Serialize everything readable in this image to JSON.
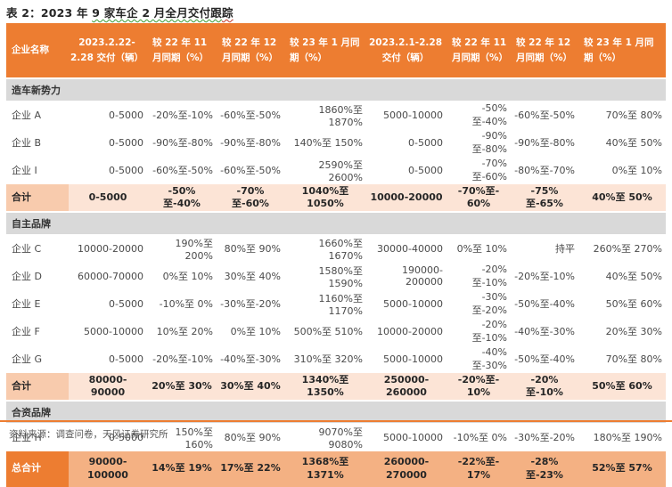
{
  "title": {
    "prefix": "表 2：2023 年 ",
    "marked_green": "9 家车企 2 月全月交付跟",
    "marked_red": "踪"
  },
  "colors": {
    "header_orange": "#ED7D31",
    "grand_total_row": "#F4B183",
    "subtotal_row": "#FCE4D6",
    "subtotal_label_cell": "#F8CBAD",
    "section_row_gray": "#D9D9D9",
    "divider_orange": "#ED7D31"
  },
  "table": {
    "headers": [
      "企业名称",
      "2023.2.22-2.28 交付（辆）",
      "较 22 年 11 月同期（%）",
      "较 22 年 12 月同期（%）",
      "较 23 年 1 月同期（%）",
      "2023.2.1-2.28 交付（辆）",
      "较 22 年 11 月同期（%）",
      "较 22 年 12 月同期（%）",
      "较 23 年 1 月同期（%）"
    ],
    "sections": [
      {
        "label": "造车新势力",
        "rows": [
          {
            "name": "企业 A",
            "values": [
              "0-5000",
              "-20%至-10%",
              "-60%至-50%",
              "1860%至 1870%",
              "5000-10000",
              "-50%至-40%",
              "-60%至-50%",
              "70%至 80%"
            ]
          },
          {
            "name": "企业 B",
            "values": [
              "0-5000",
              "-90%至-80%",
              "-90%至-80%",
              "140%至 150%",
              "0-5000",
              "-90%至-80%",
              "-90%至-80%",
              "40%至 50%"
            ]
          },
          {
            "name": "企业 I",
            "values": [
              "0-5000",
              "-60%至-50%",
              "-60%至-50%",
              "2590%至 2600%",
              "0-5000",
              "-70%至-60%",
              "-80%至-70%",
              "0%至 10%"
            ]
          }
        ],
        "total": {
          "label": "合计",
          "values": [
            "0-5000",
            "-50%至-40%",
            "-70%至-60%",
            "1040%至\n1050%",
            "10000-20000",
            "-70%至-\n60%",
            "-75%至-65%",
            "40%至 50%"
          ]
        }
      },
      {
        "label": "自主品牌",
        "rows": [
          {
            "name": "企业 C",
            "values": [
              "10000-20000",
              "190%至 200%",
              "80%至 90%",
              "1660%至 1670%",
              "30000-40000",
              "0%至 10%",
              "持平",
              "260%至 270%"
            ]
          },
          {
            "name": "企业 D",
            "values": [
              "60000-70000",
              "0%至 10%",
              "30%至 40%",
              "1580%至 1590%",
              "190000-200000",
              "-20%至-10%",
              "-20%至-10%",
              "40%至 50%"
            ]
          },
          {
            "name": "企业 E",
            "values": [
              "0-5000",
              "-10%至 0%",
              "-30%至-20%",
              "1160%至 1170%",
              "5000-10000",
              "-30%至-20%",
              "-50%至-40%",
              "50%至 60%"
            ]
          },
          {
            "name": "企业 F",
            "values": [
              "5000-10000",
              "10%至 20%",
              "0%至 10%",
              "500%至 510%",
              "10000-20000",
              "-20%至-10%",
              "-40%至-30%",
              "20%至 30%"
            ]
          },
          {
            "name": "企业 G",
            "values": [
              "0-5000",
              "-20%至-10%",
              "-40%至-30%",
              "310%至 320%",
              "5000-10000",
              "-40%至-30%",
              "-50%至-40%",
              "70%至 80%"
            ]
          }
        ],
        "total": {
          "label": "合计",
          "values": [
            "80000-90000",
            "20%至 30%",
            "30%至 40%",
            "1340%至\n1350%",
            "250000-\n260000",
            "-20%至-\n10%",
            "-20%至-10%",
            "50%至 60%"
          ]
        }
      },
      {
        "label": "合资品牌",
        "rows": [
          {
            "name": "企业 H",
            "values": [
              "0-5000",
              "150%至 160%",
              "80%至 90%",
              "9070%至 9080%",
              "5000-10000",
              "-10%至 0%",
              "-30%至-20%",
              "180%至 190%"
            ]
          }
        ],
        "total": null
      }
    ],
    "grand_total": {
      "label": "总合计",
      "values": [
        "90000-\n100000",
        "14%至 19%",
        "17%至 22%",
        "1368%至\n1371%",
        "260000-\n270000",
        "-22%至-\n17%",
        "-28%至-23%",
        "52%至 57%"
      ]
    }
  },
  "footer": {
    "source": "资料来源：调查问卷，天风证券研究所"
  }
}
